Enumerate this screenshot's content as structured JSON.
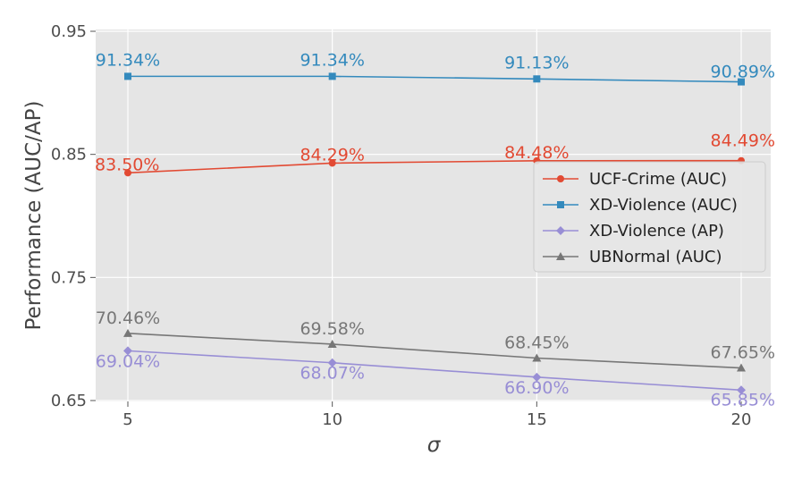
{
  "chart_data": {
    "type": "line",
    "title": "",
    "xlabel": "σ",
    "ylabel": "Performance (AUC/AP)",
    "x": [
      5,
      10,
      15,
      20
    ],
    "x_tick_labels": [
      "5",
      "10",
      "15",
      "20"
    ],
    "ylim": [
      0.65,
      0.95
    ],
    "y_ticks": [
      0.65,
      0.75,
      0.85,
      0.95
    ],
    "y_tick_labels": [
      "0.65",
      "0.75",
      "0.85",
      "0.95"
    ],
    "grid": true,
    "legend_position": "right",
    "series": [
      {
        "name": "UCF-Crime (AUC)",
        "color": "#e24a33",
        "marker": "circle",
        "values": [
          0.835,
          0.8429,
          0.8448,
          0.8449
        ],
        "labels": [
          "83.50%",
          "84.29%",
          "84.48%",
          "84.49%"
        ]
      },
      {
        "name": "XD-Violence (AUC)",
        "color": "#348abd",
        "marker": "square",
        "values": [
          0.9134,
          0.9134,
          0.9113,
          0.9089
        ],
        "labels": [
          "91.34%",
          "91.34%",
          "91.13%",
          "90.89%"
        ]
      },
      {
        "name": "XD-Violence (AP)",
        "color": "#988ed5",
        "marker": "diamond",
        "values": [
          0.6904,
          0.6807,
          0.669,
          0.6585
        ],
        "labels": [
          "69.04%",
          "68.07%",
          "66.90%",
          "65.85%"
        ]
      },
      {
        "name": "UBNormal (AUC)",
        "color": "#777777",
        "marker": "triangle",
        "values": [
          0.7046,
          0.6958,
          0.6845,
          0.6765
        ],
        "labels": [
          "70.46%",
          "69.58%",
          "68.45%",
          "67.65%"
        ]
      }
    ]
  }
}
